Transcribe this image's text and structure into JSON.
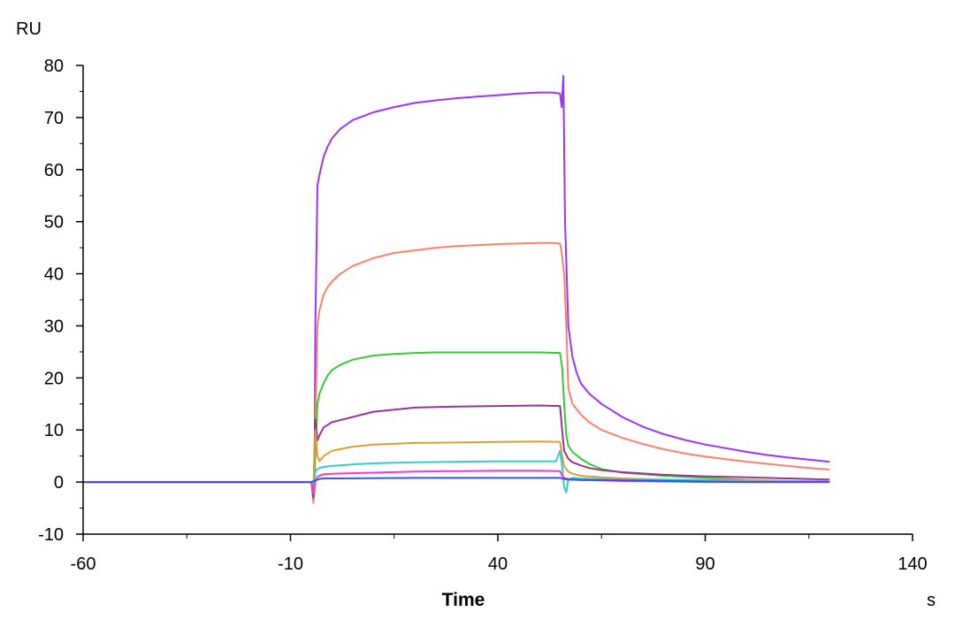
{
  "chart_data": {
    "type": "line",
    "title": "",
    "y_unit_label": "RU",
    "xlabel": "Time",
    "x_unit_label": "s",
    "xlim": [
      -60,
      140
    ],
    "ylim": [
      -10,
      80
    ],
    "x_ticks": [
      -60,
      -10,
      40,
      90,
      140
    ],
    "x_tick_labels": [
      "-60",
      "-10",
      "40",
      "90",
      "140"
    ],
    "y_ticks": [
      -10,
      0,
      10,
      20,
      30,
      40,
      50,
      60,
      70,
      80
    ],
    "y_tick_labels": [
      "-10",
      "0",
      "10",
      "20",
      "30",
      "40",
      "50",
      "60",
      "70",
      "80"
    ],
    "grid": false,
    "legend": "none",
    "series": [
      {
        "color": "#9933ff",
        "x": [
          -60,
          -50,
          -40,
          -30,
          -20,
          -10,
          -5,
          -4.8,
          -4.5,
          -4.2,
          -4,
          -3.5,
          -3,
          -2,
          -1,
          0,
          2,
          5,
          10,
          15,
          20,
          25,
          30,
          35,
          40,
          45,
          50,
          53,
          55,
          55.4,
          55.8,
          56.2,
          57,
          58,
          59,
          60,
          62,
          65,
          70,
          75,
          80,
          85,
          90,
          95,
          100,
          105,
          110,
          115,
          120
        ],
        "y": [
          0,
          0,
          0,
          0,
          0,
          0,
          0,
          -1,
          -3,
          1,
          30,
          57,
          59,
          62.5,
          64.5,
          66,
          67.8,
          69.5,
          71,
          72,
          72.8,
          73.3,
          73.7,
          74,
          74.3,
          74.6,
          74.8,
          74.8,
          74.6,
          72,
          78,
          50,
          30,
          24,
          21,
          19,
          17,
          15,
          12.5,
          10.6,
          9.2,
          8.1,
          7.2,
          6.5,
          5.8,
          5.2,
          4.7,
          4.3,
          3.9
        ]
      },
      {
        "color": "#ff7f6b",
        "x": [
          -60,
          -50,
          -40,
          -30,
          -20,
          -10,
          -5,
          -4.8,
          -4.5,
          -4.2,
          -4,
          -3.5,
          -3,
          -2,
          -1,
          0,
          2,
          5,
          10,
          15,
          20,
          25,
          30,
          35,
          40,
          45,
          50,
          53,
          55,
          55.4,
          56,
          56.5,
          57,
          58,
          60,
          62,
          65,
          70,
          75,
          80,
          85,
          90,
          95,
          100,
          105,
          110,
          115,
          120
        ],
        "y": [
          0,
          0,
          0,
          0,
          0,
          0,
          0,
          -1,
          -4,
          -2,
          10,
          30,
          33,
          36,
          37.5,
          38.5,
          40,
          41.5,
          43,
          44,
          44.5,
          45,
          45.3,
          45.5,
          45.7,
          45.8,
          45.9,
          45.9,
          45.8,
          44,
          40,
          30,
          18,
          15,
          13,
          11.5,
          10,
          8.5,
          7.3,
          6.3,
          5.5,
          4.9,
          4.4,
          3.9,
          3.5,
          3.1,
          2.7,
          2.4
        ]
      },
      {
        "color": "#33cc33",
        "x": [
          -60,
          -50,
          -40,
          -30,
          -20,
          -10,
          -5,
          -4.5,
          -4,
          -3.5,
          -3,
          -2,
          -1,
          0,
          2,
          5,
          10,
          15,
          20,
          25,
          30,
          35,
          40,
          45,
          50,
          55,
          55.5,
          56,
          56.5,
          57,
          58,
          60,
          62,
          65,
          70,
          80,
          90,
          100,
          110,
          120
        ],
        "y": [
          0,
          0,
          0,
          0,
          0,
          0,
          0,
          -2,
          5,
          15,
          17,
          19,
          20.5,
          21.5,
          22.5,
          23.5,
          24.3,
          24.6,
          24.8,
          24.9,
          24.9,
          24.9,
          24.9,
          24.9,
          24.9,
          24.8,
          22,
          15,
          9,
          7,
          5.8,
          4.5,
          3.5,
          2.5,
          1.8,
          1.2,
          0.8,
          0.4,
          0.2,
          0
        ]
      },
      {
        "color": "#993399",
        "x": [
          -60,
          -50,
          -40,
          -30,
          -20,
          -10,
          -5,
          -4.5,
          -4,
          -3.5,
          -3,
          -2,
          -1,
          0,
          5,
          10,
          20,
          30,
          40,
          50,
          55,
          55.5,
          56,
          57,
          58,
          60,
          62,
          65,
          70,
          80,
          90,
          100,
          110,
          120
        ],
        "y": [
          0,
          0,
          0,
          0,
          0,
          0,
          0,
          -3,
          12,
          8,
          9,
          10.5,
          11,
          11.5,
          12.5,
          13.5,
          14.3,
          14.5,
          14.6,
          14.7,
          14.6,
          10,
          6,
          4.5,
          3.8,
          3.2,
          2.7,
          2.3,
          1.9,
          1.4,
          1.1,
          0.9,
          0.7,
          0.5
        ]
      },
      {
        "color": "#d9a030",
        "x": [
          -60,
          -50,
          -40,
          -30,
          -20,
          -10,
          -5,
          -4.5,
          -4,
          -3.5,
          -3,
          -2,
          -1,
          0,
          5,
          10,
          20,
          30,
          40,
          50,
          55,
          55.5,
          56,
          57,
          58,
          60,
          65,
          70,
          80,
          90,
          100,
          110,
          120
        ],
        "y": [
          0,
          0,
          0,
          0,
          0,
          0,
          0,
          -2,
          10,
          5,
          4,
          5,
          5.5,
          6,
          6.8,
          7.2,
          7.5,
          7.6,
          7.7,
          7.8,
          7.7,
          5,
          3,
          2,
          1.6,
          1.2,
          0.9,
          0.7,
          0.5,
          0.4,
          0.3,
          0.2,
          0.2
        ]
      },
      {
        "color": "#33cccc",
        "x": [
          -60,
          -50,
          -40,
          -30,
          -20,
          -10,
          -5,
          -4.5,
          -4,
          -3.5,
          -3,
          -2,
          0,
          5,
          10,
          20,
          30,
          40,
          50,
          54,
          55,
          55.5,
          56,
          56.5,
          57,
          58,
          60,
          65,
          70,
          80,
          90,
          100,
          110,
          120
        ],
        "y": [
          0,
          0,
          0,
          0,
          0,
          0,
          0,
          -2,
          2,
          2.5,
          2.7,
          2.9,
          3.1,
          3.4,
          3.6,
          3.8,
          3.9,
          4,
          4,
          4,
          6,
          3,
          -1,
          -2,
          0.5,
          0.8,
          0.7,
          0.6,
          0.5,
          0.4,
          0.3,
          0.2,
          0.1,
          0
        ]
      },
      {
        "color": "#ff33cc",
        "x": [
          -60,
          -50,
          -40,
          -30,
          -20,
          -10,
          -5,
          -4.5,
          -4,
          -3.5,
          -3,
          -2,
          0,
          5,
          10,
          20,
          30,
          40,
          50,
          55,
          55.5,
          56,
          57,
          58,
          60,
          65,
          70,
          80,
          90,
          100,
          110,
          120
        ],
        "y": [
          0,
          0,
          0,
          0,
          0,
          0,
          0,
          -2,
          0,
          1,
          1.2,
          1.5,
          1.6,
          1.7,
          1.8,
          2,
          2.1,
          2.2,
          2.2,
          2.1,
          1.2,
          0.8,
          0.6,
          0.5,
          0.4,
          0.3,
          0.2,
          0.1,
          0,
          0,
          0,
          0
        ]
      },
      {
        "color": "#3355ee",
        "x": [
          -60,
          -30,
          -10,
          -5,
          -4,
          -3,
          -2,
          0,
          20,
          40,
          55,
          56,
          57,
          60,
          70,
          80,
          90,
          100,
          110,
          120
        ],
        "y": [
          0,
          0,
          0,
          0,
          0.3,
          0.6,
          0.7,
          0.7,
          0.8,
          0.8,
          0.8,
          0.6,
          0.5,
          0.4,
          0.3,
          0.2,
          0.1,
          0,
          0,
          0
        ]
      }
    ]
  }
}
